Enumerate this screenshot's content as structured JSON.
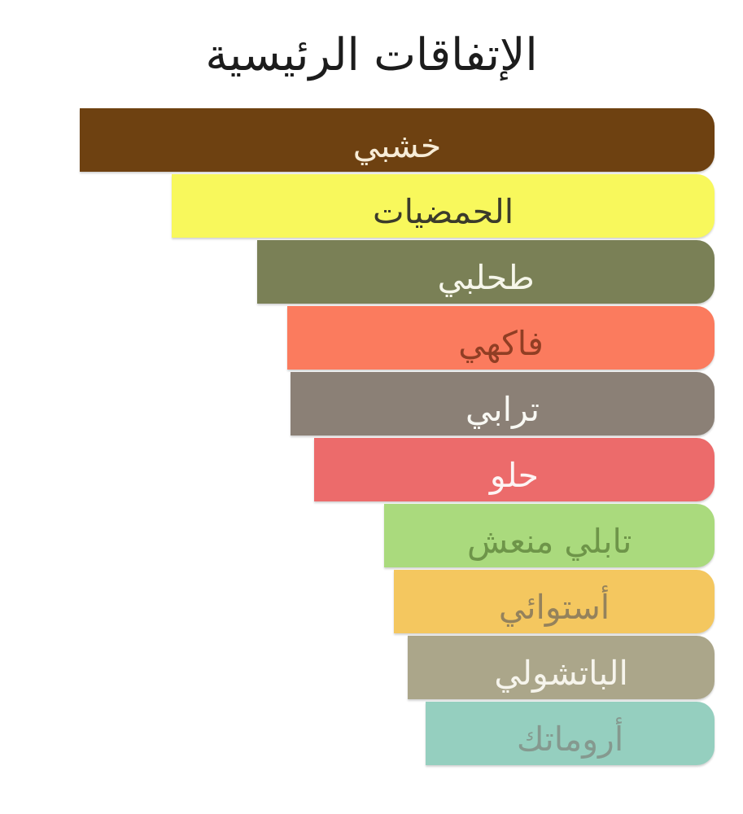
{
  "page": {
    "background": "#ffffff"
  },
  "chart_data": {
    "type": "bar",
    "orientation": "horizontal",
    "direction": "rtl",
    "alignment": "right",
    "title": "الإتفاقات الرئيسية",
    "title_color": "#1c1c1c",
    "grid": false,
    "legend": false,
    "categories": [
      "خشبي",
      "الحمضيات",
      "طحلبي",
      "فاكهي",
      "ترابي",
      "حلو",
      "تابلي منعش",
      "أستوائي",
      "الباتشولي",
      "أروماتك"
    ],
    "values": [
      100,
      85.5,
      72,
      67.3,
      66.8,
      63.1,
      52,
      50.5,
      48.3,
      45.5
    ],
    "value_unit": "percent-of-longest-bar",
    "series": [
      {
        "label": "خشبي",
        "value": 100,
        "bar_color": "#6e4111",
        "text_color": "#f7ecd7"
      },
      {
        "label": "الحمضيات",
        "value": 85.5,
        "bar_color": "#f8f85c",
        "text_color": "#3b3b2b"
      },
      {
        "label": "طحلبي",
        "value": 72,
        "bar_color": "#7a8056",
        "text_color": "#f6f6ea"
      },
      {
        "label": "فاكهي",
        "value": 67.3,
        "bar_color": "#fb7b5e",
        "text_color": "#903e24"
      },
      {
        "label": "ترابي",
        "value": 66.8,
        "bar_color": "#8b8076",
        "text_color": "#f8f8f3"
      },
      {
        "label": "حلو",
        "value": 63.1,
        "bar_color": "#ec6b6b",
        "text_color": "#fdf4f4"
      },
      {
        "label": "تابلي منعش",
        "value": 52,
        "bar_color": "#aada7d",
        "text_color": "#6e9549"
      },
      {
        "label": "أستوائي",
        "value": 50.5,
        "bar_color": "#f4c75f",
        "text_color": "#94825c"
      },
      {
        "label": "الباتشولي",
        "value": 48.3,
        "bar_color": "#aba68a",
        "text_color": "#f6f4ec"
      },
      {
        "label": "أروماتك",
        "value": 45.5,
        "bar_color": "#95cfbf",
        "text_color": "#85998f"
      }
    ]
  }
}
